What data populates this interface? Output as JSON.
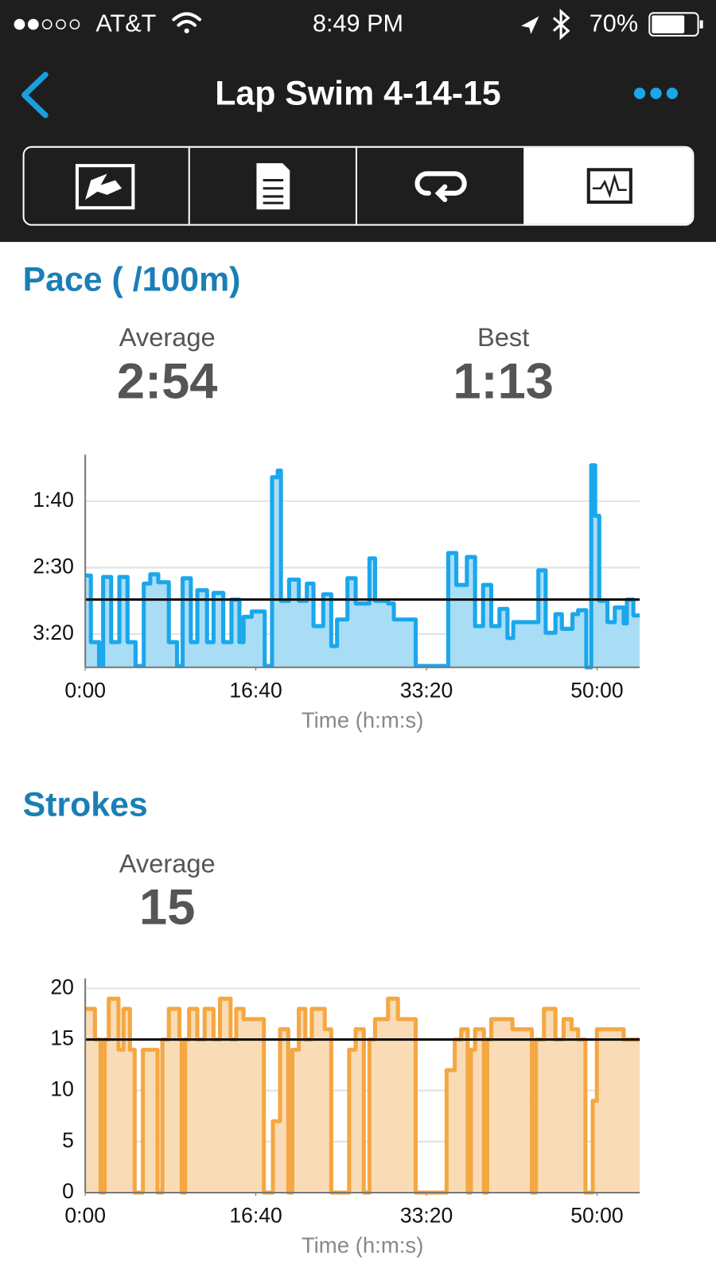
{
  "status_bar": {
    "carrier": "AT&T",
    "time": "8:49 PM",
    "battery": "70%"
  },
  "header": {
    "title": "Lap Swim 4-14-15"
  },
  "sections": [
    {
      "heading": "Pace ( /100m)",
      "stats": [
        {
          "label": "Average",
          "value": "2:54"
        },
        {
          "label": "Best",
          "value": "1:13"
        }
      ]
    },
    {
      "heading": "Strokes",
      "stats": [
        {
          "label": "Average",
          "value": "15"
        }
      ]
    }
  ],
  "chart_data": [
    {
      "type": "line",
      "step": true,
      "x_label": "Time (h:m:s)",
      "color": "#1aa7ec",
      "fill_color": "#a9ddf6",
      "grid": true,
      "reference_line": 174,
      "xlim": [
        0,
        3250
      ],
      "xticks": [
        {
          "value": 0,
          "label": "0:00"
        },
        {
          "value": 1000,
          "label": "16:40"
        },
        {
          "value": 2000,
          "label": "33:20"
        },
        {
          "value": 3000,
          "label": "50:00"
        }
      ],
      "ylim": [
        225,
        65
      ],
      "yticks": [
        {
          "value": 100,
          "label": "1:40"
        },
        {
          "value": 150,
          "label": "2:30"
        },
        {
          "value": 200,
          "label": "3:20"
        }
      ],
      "x": [
        0,
        33,
        81,
        105,
        152,
        200,
        248,
        295,
        343,
        381,
        428,
        490,
        538,
        571,
        619,
        657,
        714,
        752,
        809,
        857,
        904,
        928,
        976,
        1038,
        1052,
        1095,
        1128,
        1147,
        1195,
        1252,
        1299,
        1338,
        1395,
        1442,
        1476,
        1537,
        1585,
        1666,
        1699,
        1775,
        1809,
        1871,
        1937,
        2109,
        2128,
        2175,
        2237,
        2285,
        2332,
        2380,
        2428,
        2475,
        2509,
        2618,
        2656,
        2699,
        2756,
        2794,
        2856,
        2889,
        2937,
        2966,
        2989,
        3013,
        3061,
        3104,
        3156,
        3175,
        3213
      ],
      "values": [
        156,
        206,
        224,
        157,
        206,
        157,
        206,
        224,
        162,
        155,
        161,
        206,
        224,
        158,
        206,
        167,
        206,
        169,
        206,
        174,
        206,
        187,
        183,
        183,
        224,
        82,
        77,
        175,
        159,
        175,
        162,
        194,
        170,
        209,
        189,
        158,
        177,
        143,
        175,
        177,
        189,
        189,
        224,
        224,
        139,
        163,
        142,
        194,
        163,
        194,
        181,
        203,
        191,
        191,
        152,
        199,
        185,
        196,
        185,
        182,
        225,
        73,
        111,
        175,
        191,
        180,
        192,
        174,
        186
      ]
    },
    {
      "type": "line",
      "step": true,
      "x_label": "Time (h:m:s)",
      "color": "#f5a742",
      "fill_color": "#f9dcb6",
      "grid": true,
      "reference_line": 15,
      "xlim": [
        0,
        3250
      ],
      "xticks": [
        {
          "value": 0,
          "label": "0:00"
        },
        {
          "value": 1000,
          "label": "16:40"
        },
        {
          "value": 2000,
          "label": "33:20"
        },
        {
          "value": 3000,
          "label": "50:00"
        }
      ],
      "ylim": [
        0,
        21
      ],
      "yticks": [
        0,
        5,
        10,
        15,
        20
      ],
      "x": [
        0,
        57,
        90,
        114,
        138,
        195,
        224,
        262,
        290,
        338,
        424,
        452,
        490,
        552,
        566,
        585,
        609,
        657,
        700,
        752,
        790,
        852,
        885,
        928,
        1047,
        1100,
        1142,
        1190,
        1214,
        1252,
        1290,
        1328,
        1404,
        1442,
        1547,
        1585,
        1633,
        1666,
        1699,
        1775,
        1833,
        1937,
        2118,
        2166,
        2204,
        2242,
        2261,
        2285,
        2337,
        2356,
        2380,
        2504,
        2618,
        2642,
        2689,
        2756,
        2804,
        2851,
        2889,
        2932,
        2975,
        2999,
        3061,
        3156
      ],
      "values": [
        18,
        15,
        0,
        15,
        19,
        14,
        18,
        14,
        0,
        14,
        0,
        15,
        18,
        15,
        0,
        15,
        18,
        15,
        18,
        15,
        19,
        15,
        18,
        17,
        0,
        7,
        16,
        0,
        14,
        18,
        15,
        18,
        16,
        0,
        14,
        16,
        0,
        15,
        17,
        19,
        17,
        0,
        12,
        15,
        16,
        0,
        14,
        16,
        0,
        15,
        17,
        16,
        0,
        15,
        18,
        15,
        17,
        16,
        15,
        0,
        9,
        16,
        16,
        15
      ]
    }
  ]
}
